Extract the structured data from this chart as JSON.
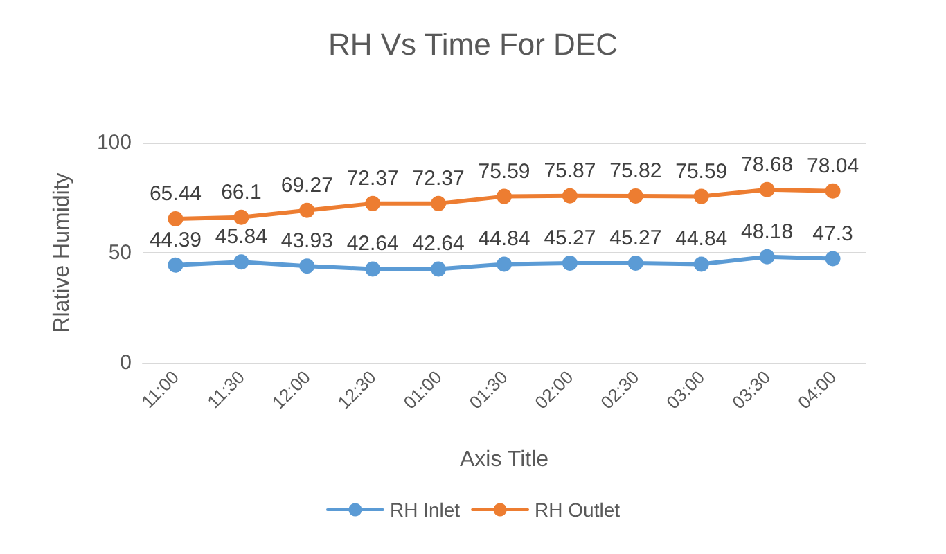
{
  "chart_data": {
    "type": "line",
    "title": "RH Vs Time For DEC",
    "xlabel": "Axis Title",
    "ylabel": "Rlative Humidity",
    "categories": [
      "11:00",
      "11:30",
      "12:00",
      "12:30",
      "01:00",
      "01:30",
      "02:00",
      "02:30",
      "03:00",
      "03:30",
      "04:00"
    ],
    "series": [
      {
        "name": "RH Inlet",
        "color": "#5b9bd5",
        "values": [
          44.39,
          45.84,
          43.93,
          42.64,
          42.64,
          44.84,
          45.27,
          45.27,
          44.84,
          48.18,
          47.3
        ]
      },
      {
        "name": "RH Outlet",
        "color": "#ed7d31",
        "values": [
          65.44,
          66.1,
          69.27,
          72.37,
          72.37,
          75.59,
          75.87,
          75.82,
          75.59,
          78.68,
          78.04
        ]
      }
    ],
    "ylim": [
      0,
      100
    ],
    "yticks": [
      0,
      50,
      100
    ],
    "grid": "y",
    "legend": "bottom",
    "marker": "circle",
    "line_style": "solid",
    "data_labels": true
  }
}
